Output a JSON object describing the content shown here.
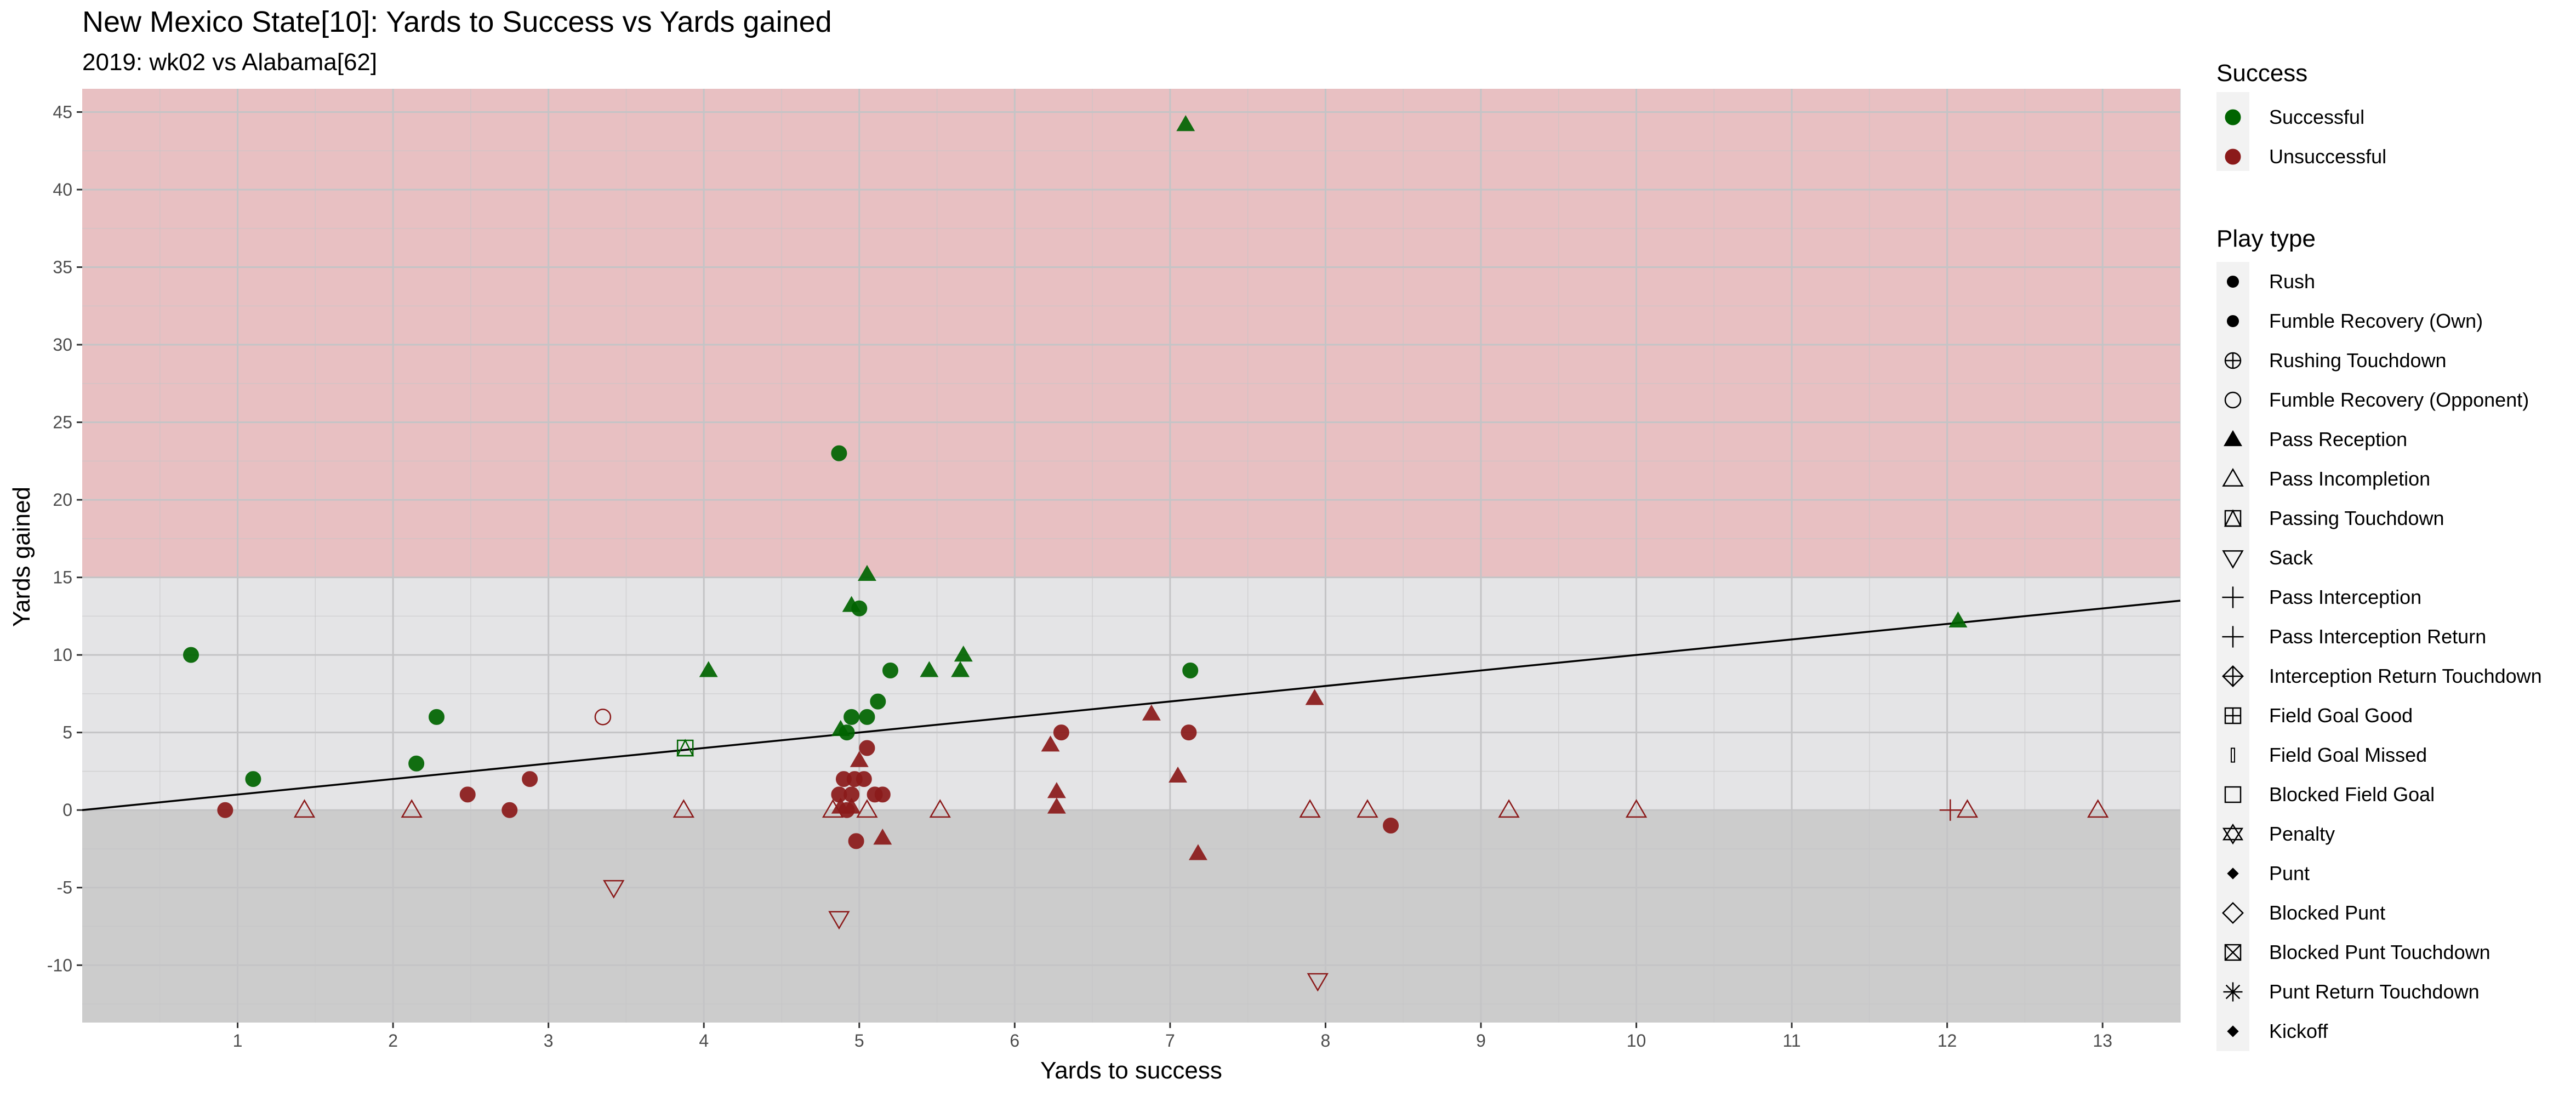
{
  "chart_data": {
    "type": "scatter",
    "title": "New Mexico State[10]: Yards to Success vs Yards gained",
    "subtitle": "2019: wk02 vs Alabama[62]",
    "xlabel": "Yards to success",
    "ylabel": "Yards gained",
    "xlim": [
      0,
      13.5
    ],
    "ylim": [
      -13.7,
      46.5
    ],
    "x_ticks": [
      1,
      2,
      3,
      4,
      5,
      6,
      7,
      8,
      9,
      10,
      11,
      12,
      13
    ],
    "y_ticks": [
      -10,
      -5,
      0,
      5,
      10,
      15,
      20,
      25,
      30,
      35,
      40,
      45
    ],
    "grid": true,
    "background_bands": [
      {
        "from": 15,
        "to": 46.5,
        "color": "#e8c0c2"
      },
      {
        "from": 0,
        "to": 15,
        "color": "#e4e4e6"
      },
      {
        "from": -13.7,
        "to": 0,
        "color": "#cccccc"
      }
    ],
    "reference_line": {
      "type": "identity",
      "slope": 1,
      "intercept": 0,
      "color": "#000000"
    },
    "colors": {
      "Successful": "#006400",
      "Unsuccessful": "#8b1a1a"
    },
    "legend_position": "right",
    "legend": {
      "success": {
        "title": "Success",
        "items": [
          {
            "label": "Successful",
            "color": "#006400"
          },
          {
            "label": "Unsuccessful",
            "color": "#8b1a1a"
          }
        ]
      },
      "play_type": {
        "title": "Play type",
        "items": [
          {
            "label": "Rush",
            "shape": "circle"
          },
          {
            "label": "Fumble Recovery (Own)",
            "shape": "circle"
          },
          {
            "label": "Rushing Touchdown",
            "shape": "circle-plus"
          },
          {
            "label": "Fumble Recovery (Opponent)",
            "shape": "circle-open"
          },
          {
            "label": "Pass Reception",
            "shape": "triangle"
          },
          {
            "label": "Pass Incompletion",
            "shape": "triangle-open"
          },
          {
            "label": "Passing Touchdown",
            "shape": "square-triangle"
          },
          {
            "label": "Sack",
            "shape": "triangle-down-open"
          },
          {
            "label": "Pass Interception",
            "shape": "plus"
          },
          {
            "label": "Pass Interception Return",
            "shape": "plus"
          },
          {
            "label": "Interception Return Touchdown",
            "shape": "diamond-plus"
          },
          {
            "label": "Field Goal Good",
            "shape": "square-plus"
          },
          {
            "label": "Field Goal Missed",
            "shape": "bar"
          },
          {
            "label": "Blocked Field Goal",
            "shape": "square-open"
          },
          {
            "label": "Penalty",
            "shape": "star-of-david"
          },
          {
            "label": "Punt",
            "shape": "diamond"
          },
          {
            "label": "Blocked Punt",
            "shape": "diamond-open"
          },
          {
            "label": "Blocked Punt Touchdown",
            "shape": "square-x"
          },
          {
            "label": "Punt Return Touchdown",
            "shape": "asterisk"
          },
          {
            "label": "Kickoff",
            "shape": "diamond"
          }
        ]
      }
    },
    "points": [
      {
        "x": 0.7,
        "y": 10,
        "type": "Rush",
        "success": "Successful"
      },
      {
        "x": 1.1,
        "y": 2,
        "type": "Rush",
        "success": "Successful"
      },
      {
        "x": 2.15,
        "y": 3,
        "type": "Rush",
        "success": "Successful"
      },
      {
        "x": 2.28,
        "y": 6,
        "type": "Rush",
        "success": "Successful"
      },
      {
        "x": 4.03,
        "y": 9,
        "type": "Pass Reception",
        "success": "Successful"
      },
      {
        "x": 4.87,
        "y": 23,
        "type": "Rush",
        "success": "Successful"
      },
      {
        "x": 4.88,
        "y": 5.2,
        "type": "Pass Reception",
        "success": "Successful"
      },
      {
        "x": 4.92,
        "y": 5,
        "type": "Rush",
        "success": "Successful"
      },
      {
        "x": 4.95,
        "y": 6,
        "type": "Rush",
        "success": "Successful"
      },
      {
        "x": 4.95,
        "y": 13.2,
        "type": "Pass Reception",
        "success": "Successful"
      },
      {
        "x": 5.0,
        "y": 13,
        "type": "Rush",
        "success": "Successful"
      },
      {
        "x": 5.05,
        "y": 15.2,
        "type": "Pass Reception",
        "success": "Successful"
      },
      {
        "x": 5.05,
        "y": 6,
        "type": "Rush",
        "success": "Successful"
      },
      {
        "x": 5.12,
        "y": 7,
        "type": "Rush",
        "success": "Successful"
      },
      {
        "x": 5.2,
        "y": 9,
        "type": "Rush",
        "success": "Successful"
      },
      {
        "x": 5.45,
        "y": 9,
        "type": "Pass Reception",
        "success": "Successful"
      },
      {
        "x": 5.65,
        "y": 9,
        "type": "Pass Reception",
        "success": "Successful"
      },
      {
        "x": 5.67,
        "y": 10,
        "type": "Pass Reception",
        "success": "Successful"
      },
      {
        "x": 7.1,
        "y": 44.2,
        "type": "Pass Reception",
        "success": "Successful"
      },
      {
        "x": 7.13,
        "y": 9,
        "type": "Rush",
        "success": "Successful"
      },
      {
        "x": 12.07,
        "y": 12.2,
        "type": "Pass Reception",
        "success": "Successful"
      },
      {
        "x": 3.88,
        "y": 4,
        "type": "Passing Touchdown",
        "success": "Successful"
      },
      {
        "x": 0.92,
        "y": 0,
        "type": "Rush",
        "success": "Unsuccessful"
      },
      {
        "x": 2.48,
        "y": 1,
        "type": "Rush",
        "success": "Unsuccessful"
      },
      {
        "x": 2.75,
        "y": 0,
        "type": "Rush",
        "success": "Unsuccessful"
      },
      {
        "x": 2.88,
        "y": 2,
        "type": "Rush",
        "success": "Unsuccessful"
      },
      {
        "x": 4.87,
        "y": 1,
        "type": "Rush",
        "success": "Unsuccessful"
      },
      {
        "x": 4.9,
        "y": 2,
        "type": "Rush",
        "success": "Unsuccessful"
      },
      {
        "x": 4.92,
        "y": 0,
        "type": "Rush",
        "success": "Unsuccessful"
      },
      {
        "x": 4.95,
        "y": 1,
        "type": "Rush",
        "success": "Unsuccessful"
      },
      {
        "x": 4.97,
        "y": 2,
        "type": "Rush",
        "success": "Unsuccessful"
      },
      {
        "x": 4.98,
        "y": -2,
        "type": "Rush",
        "success": "Unsuccessful"
      },
      {
        "x": 5.03,
        "y": 2,
        "type": "Rush",
        "success": "Unsuccessful"
      },
      {
        "x": 5.05,
        "y": 4,
        "type": "Rush",
        "success": "Unsuccessful"
      },
      {
        "x": 5.1,
        "y": 1,
        "type": "Rush",
        "success": "Unsuccessful"
      },
      {
        "x": 5.15,
        "y": 1,
        "type": "Rush",
        "success": "Unsuccessful"
      },
      {
        "x": 6.3,
        "y": 5,
        "type": "Rush",
        "success": "Unsuccessful"
      },
      {
        "x": 7.12,
        "y": 5,
        "type": "Rush",
        "success": "Unsuccessful"
      },
      {
        "x": 8.42,
        "y": -1,
        "type": "Rush",
        "success": "Unsuccessful"
      },
      {
        "x": 3.35,
        "y": 6,
        "type": "Fumble Recovery (Opponent)",
        "success": "Unsuccessful"
      },
      {
        "x": 4.88,
        "y": 0.2,
        "type": "Pass Reception",
        "success": "Unsuccessful"
      },
      {
        "x": 4.95,
        "y": 0.2,
        "type": "Pass Reception",
        "success": "Unsuccessful"
      },
      {
        "x": 5.0,
        "y": 3.2,
        "type": "Pass Reception",
        "success": "Unsuccessful"
      },
      {
        "x": 5.15,
        "y": -1.8,
        "type": "Pass Reception",
        "success": "Unsuccessful"
      },
      {
        "x": 6.23,
        "y": 4.2,
        "type": "Pass Reception",
        "success": "Unsuccessful"
      },
      {
        "x": 6.27,
        "y": 1.2,
        "type": "Pass Reception",
        "success": "Unsuccessful"
      },
      {
        "x": 6.27,
        "y": 0.2,
        "type": "Pass Reception",
        "success": "Unsuccessful"
      },
      {
        "x": 6.88,
        "y": 6.2,
        "type": "Pass Reception",
        "success": "Unsuccessful"
      },
      {
        "x": 7.05,
        "y": 2.2,
        "type": "Pass Reception",
        "success": "Unsuccessful"
      },
      {
        "x": 7.18,
        "y": -2.8,
        "type": "Pass Reception",
        "success": "Unsuccessful"
      },
      {
        "x": 7.93,
        "y": 7.2,
        "type": "Pass Reception",
        "success": "Unsuccessful"
      },
      {
        "x": 1.43,
        "y": 0,
        "type": "Pass Incompletion",
        "success": "Unsuccessful"
      },
      {
        "x": 2.12,
        "y": 0,
        "type": "Pass Incompletion",
        "success": "Unsuccessful"
      },
      {
        "x": 3.87,
        "y": 0,
        "type": "Pass Incompletion",
        "success": "Unsuccessful"
      },
      {
        "x": 4.83,
        "y": 0,
        "type": "Pass Incompletion",
        "success": "Unsuccessful"
      },
      {
        "x": 5.05,
        "y": 0,
        "type": "Pass Incompletion",
        "success": "Unsuccessful"
      },
      {
        "x": 5.52,
        "y": 0,
        "type": "Pass Incompletion",
        "success": "Unsuccessful"
      },
      {
        "x": 7.9,
        "y": 0,
        "type": "Pass Incompletion",
        "success": "Unsuccessful"
      },
      {
        "x": 8.27,
        "y": 0,
        "type": "Pass Incompletion",
        "success": "Unsuccessful"
      },
      {
        "x": 9.18,
        "y": 0,
        "type": "Pass Incompletion",
        "success": "Unsuccessful"
      },
      {
        "x": 10.0,
        "y": 0,
        "type": "Pass Incompletion",
        "success": "Unsuccessful"
      },
      {
        "x": 12.13,
        "y": 0,
        "type": "Pass Incompletion",
        "success": "Unsuccessful"
      },
      {
        "x": 12.97,
        "y": 0,
        "type": "Pass Incompletion",
        "success": "Unsuccessful"
      },
      {
        "x": 3.42,
        "y": -5,
        "type": "Sack",
        "success": "Unsuccessful"
      },
      {
        "x": 4.87,
        "y": -7,
        "type": "Sack",
        "success": "Unsuccessful"
      },
      {
        "x": 7.95,
        "y": -11,
        "type": "Sack",
        "success": "Unsuccessful"
      },
      {
        "x": 12.02,
        "y": 0,
        "type": "Pass Interception",
        "success": "Unsuccessful"
      }
    ]
  }
}
